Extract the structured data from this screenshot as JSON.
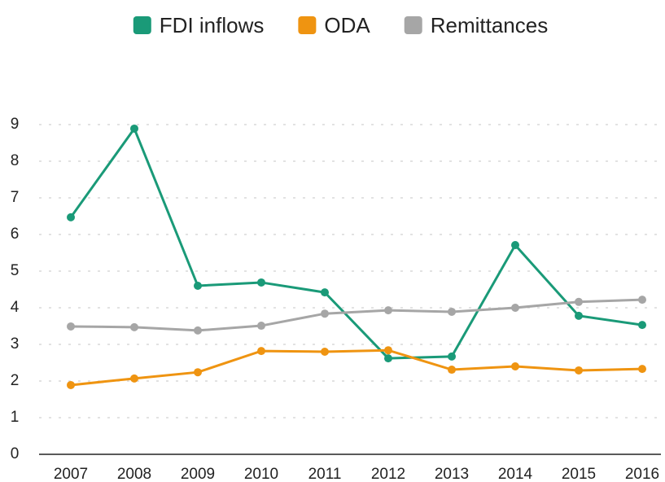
{
  "chart_data": {
    "type": "line",
    "categories": [
      "2007",
      "2008",
      "2009",
      "2010",
      "2011",
      "2012",
      "2013",
      "2014",
      "2015",
      "2016"
    ],
    "series": [
      {
        "name": "FDI inflows",
        "color": "#1a9a78",
        "values": [
          6.47,
          8.89,
          4.6,
          4.69,
          4.42,
          2.62,
          2.67,
          5.71,
          3.78,
          3.53
        ]
      },
      {
        "name": "ODA",
        "color": "#ef9411",
        "values": [
          1.89,
          2.07,
          2.24,
          2.82,
          2.8,
          2.84,
          2.31,
          2.4,
          2.29,
          2.33
        ]
      },
      {
        "name": "Remittances",
        "color": "#a6a6a6",
        "values": [
          3.49,
          3.47,
          3.38,
          3.51,
          3.84,
          3.93,
          3.89,
          4.0,
          4.16,
          4.22
        ]
      }
    ],
    "ylim": [
      0,
      9
    ],
    "yticks": [
      0,
      1,
      2,
      3,
      4,
      5,
      6,
      7,
      8,
      9
    ],
    "grid": true,
    "legend": "top"
  }
}
